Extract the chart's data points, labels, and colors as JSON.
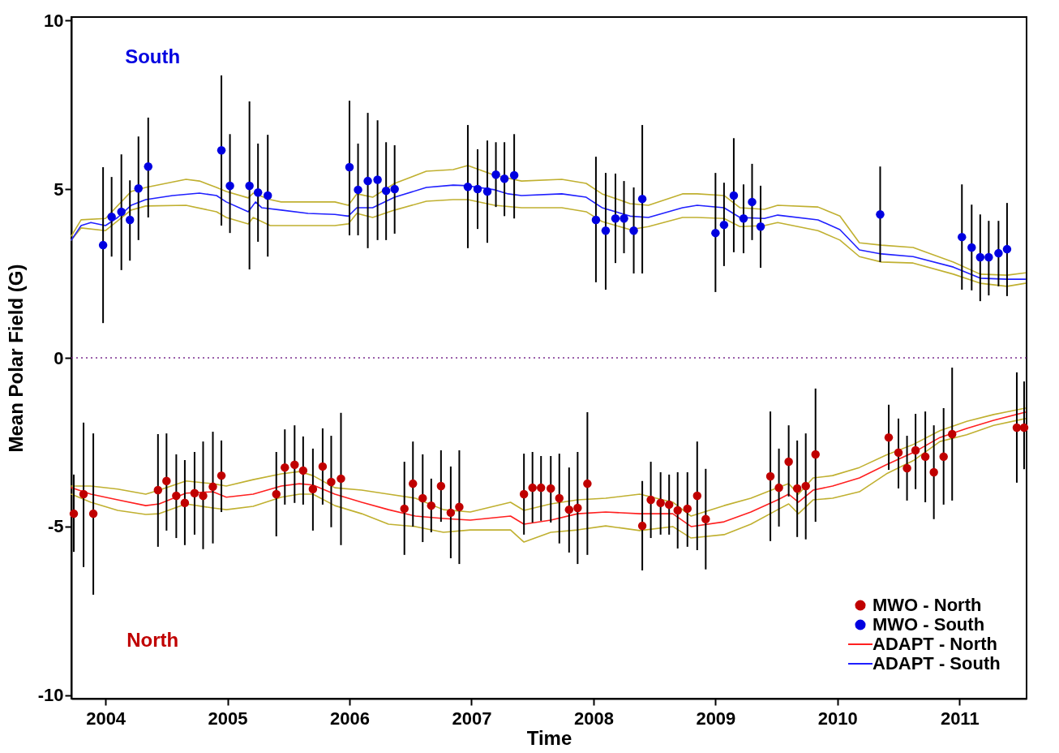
{
  "chart_data": {
    "type": "scatter",
    "xlabel": "Time",
    "ylabel": "Mean Polar Field (G)",
    "xlim": [
      2003.72,
      2011.55
    ],
    "xticks": [
      2004,
      2005,
      2006,
      2007,
      2008,
      2009,
      2010,
      2011
    ],
    "ylim": [
      -10.1,
      10.1
    ],
    "yticks": [
      -10,
      -5,
      0,
      5,
      10
    ],
    "legend": "bottom right",
    "marker": "circle",
    "line_style": "solid",
    "ref_lines": [
      {
        "axis": "y",
        "value": 0,
        "color": "#7b2d8e",
        "line_style": "dotted"
      }
    ],
    "annotations": [
      "South",
      "North"
    ],
    "series": [
      {
        "name": "MWO - North",
        "color": "#c00000",
        "x": [
          2003.74,
          2003.82,
          2003.9,
          2004.43,
          2004.5,
          2004.58,
          2004.65,
          2004.73,
          2004.8,
          2004.88,
          2004.95,
          2005.4,
          2005.47,
          2005.55,
          2005.62,
          2005.7,
          2005.78,
          2005.85,
          2005.93,
          2006.45,
          2006.52,
          2006.6,
          2006.67,
          2006.75,
          2006.83,
          2006.9,
          2007.43,
          2007.5,
          2007.57,
          2007.65,
          2007.72,
          2007.8,
          2007.87,
          2007.95,
          2008.4,
          2008.47,
          2008.55,
          2008.62,
          2008.69,
          2008.77,
          2008.85,
          2008.92,
          2009.45,
          2009.52,
          2009.6,
          2009.67,
          2009.74,
          2009.82,
          2010.42,
          2010.5,
          2010.57,
          2010.64,
          2010.72,
          2010.79,
          2010.87,
          2010.94,
          2011.47,
          2011.53
        ],
        "values": [
          -4.62,
          -4.04,
          -4.62,
          -3.92,
          -3.65,
          -4.09,
          -4.3,
          -4.01,
          -4.09,
          -3.82,
          -3.49,
          -4.04,
          -3.25,
          -3.17,
          -3.34,
          -3.89,
          -3.22,
          -3.68,
          -3.58,
          -4.47,
          -3.73,
          -4.16,
          -4.38,
          -3.8,
          -4.59,
          -4.42,
          -4.04,
          -3.85,
          -3.85,
          -3.87,
          -4.16,
          -4.5,
          -4.45,
          -3.73,
          -4.98,
          -4.21,
          -4.3,
          -4.35,
          -4.52,
          -4.47,
          -4.09,
          -4.78,
          -3.51,
          -3.85,
          -3.08,
          -3.87,
          -3.8,
          -2.86,
          -2.36,
          -2.81,
          -3.27,
          -2.74,
          -2.93,
          -3.39,
          -2.93,
          -2.26,
          -2.07,
          -2.07
        ],
        "errors": [
          [
            -5.75,
            -3.46
          ],
          [
            -6.2,
            -1.92
          ],
          [
            -7.02,
            -2.24
          ],
          [
            -5.6,
            -2.26
          ],
          [
            -5.12,
            -2.24
          ],
          [
            -5.34,
            -2.86
          ],
          [
            -5.55,
            -3.03
          ],
          [
            -5.24,
            -2.79
          ],
          [
            -5.67,
            -2.48
          ],
          [
            -5.5,
            -2.19
          ],
          [
            -4.57,
            -2.45
          ],
          [
            -5.29,
            -2.79
          ],
          [
            -4.35,
            -2.12
          ],
          [
            -4.3,
            -2.0
          ],
          [
            -4.35,
            -2.33
          ],
          [
            -5.12,
            -2.69
          ],
          [
            -4.35,
            -2.09
          ],
          [
            -5.02,
            -2.31
          ],
          [
            -5.55,
            -1.63
          ],
          [
            -5.84,
            -3.08
          ],
          [
            -5.0,
            -2.48
          ],
          [
            -5.46,
            -2.86
          ],
          [
            -5.17,
            -3.58
          ],
          [
            -4.86,
            -2.74
          ],
          [
            -5.94,
            -3.22
          ],
          [
            -6.11,
            -2.74
          ],
          [
            -5.24,
            -2.84
          ],
          [
            -4.88,
            -2.79
          ],
          [
            -4.83,
            -2.91
          ],
          [
            -4.88,
            -2.91
          ],
          [
            -5.5,
            -2.84
          ],
          [
            -5.77,
            -3.25
          ],
          [
            -6.11,
            -2.79
          ],
          [
            -5.84,
            -1.61
          ],
          [
            -6.3,
            -3.65
          ],
          [
            -5.34,
            -3.08
          ],
          [
            -5.24,
            -3.39
          ],
          [
            -5.24,
            -3.46
          ],
          [
            -5.65,
            -3.39
          ],
          [
            -5.6,
            -3.39
          ],
          [
            -5.7,
            -2.48
          ],
          [
            -6.27,
            -3.29
          ],
          [
            -5.43,
            -1.59
          ],
          [
            -5.0,
            -2.69
          ],
          [
            -4.11,
            -2.0
          ],
          [
            -5.31,
            -2.45
          ],
          [
            -5.38,
            -2.24
          ],
          [
            -4.86,
            -0.91
          ],
          [
            -3.32,
            -1.39
          ],
          [
            -3.87,
            -1.8
          ],
          [
            -4.23,
            -2.31
          ],
          [
            -3.89,
            -1.66
          ],
          [
            -4.28,
            -1.59
          ],
          [
            -4.78,
            -2.0
          ],
          [
            -4.35,
            -1.49
          ],
          [
            -4.23,
            -0.29
          ],
          [
            -3.7,
            -0.43
          ],
          [
            -3.3,
            -0.7
          ]
        ]
      },
      {
        "name": "MWO - South",
        "color": "#0000e0",
        "x": [
          2003.98,
          2004.05,
          2004.13,
          2004.2,
          2004.27,
          2004.35,
          2004.95,
          2005.02,
          2005.18,
          2005.25,
          2005.33,
          2006.0,
          2006.07,
          2006.15,
          2006.23,
          2006.3,
          2006.37,
          2006.97,
          2007.05,
          2007.13,
          2007.2,
          2007.27,
          2007.35,
          2008.02,
          2008.1,
          2008.18,
          2008.25,
          2008.33,
          2008.4,
          2009.0,
          2009.07,
          2009.15,
          2009.23,
          2009.3,
          2009.37,
          2010.35,
          2011.02,
          2011.1,
          2011.17,
          2011.24,
          2011.32,
          2011.39
        ],
        "values": [
          3.34,
          4.18,
          4.33,
          4.09,
          5.02,
          5.67,
          6.15,
          5.1,
          5.1,
          4.9,
          4.81,
          5.65,
          4.98,
          5.24,
          5.28,
          4.95,
          5.0,
          5.07,
          5.0,
          4.93,
          5.43,
          5.31,
          5.41,
          4.09,
          3.77,
          4.13,
          4.13,
          3.77,
          4.71,
          3.7,
          3.94,
          4.81,
          4.13,
          4.62,
          3.89,
          4.25,
          3.58,
          3.27,
          2.98,
          2.98,
          3.1,
          3.22
        ],
        "errors": [
          [
            1.03,
            5.65
          ],
          [
            3.0,
            5.36
          ],
          [
            2.6,
            6.03
          ],
          [
            2.88,
            5.26
          ],
          [
            3.49,
            6.56
          ],
          [
            4.16,
            7.12
          ],
          [
            3.92,
            8.37
          ],
          [
            3.7,
            6.63
          ],
          [
            2.62,
            7.6
          ],
          [
            3.44,
            6.35
          ],
          [
            3.0,
            6.61
          ],
          [
            3.63,
            7.62
          ],
          [
            3.63,
            6.35
          ],
          [
            3.25,
            7.26
          ],
          [
            3.49,
            7.04
          ],
          [
            3.49,
            6.39
          ],
          [
            3.68,
            6.3
          ],
          [
            3.25,
            6.9
          ],
          [
            3.82,
            6.18
          ],
          [
            3.41,
            6.44
          ],
          [
            4.47,
            6.39
          ],
          [
            4.2,
            6.39
          ],
          [
            4.13,
            6.63
          ],
          [
            2.24,
            5.96
          ],
          [
            2.02,
            5.48
          ],
          [
            2.81,
            5.46
          ],
          [
            3.1,
            5.24
          ],
          [
            2.5,
            5.05
          ],
          [
            2.5,
            6.9
          ],
          [
            1.95,
            5.48
          ],
          [
            2.72,
            5.19
          ],
          [
            3.13,
            6.51
          ],
          [
            3.1,
            5.14
          ],
          [
            3.49,
            5.75
          ],
          [
            2.67,
            5.1
          ],
          [
            2.84,
            5.67
          ],
          [
            2.02,
            5.14
          ],
          [
            2.0,
            4.54
          ],
          [
            1.68,
            4.25
          ],
          [
            1.85,
            4.06
          ],
          [
            2.12,
            4.06
          ],
          [
            1.83,
            4.59
          ]
        ]
      },
      {
        "name": "ADAPT - North",
        "type": "line",
        "marker": "none",
        "color": "#ff2020",
        "x": [
          2003.72,
          2003.88,
          2004.1,
          2004.33,
          2004.44,
          2004.66,
          2004.88,
          2004.99,
          2005.21,
          2005.44,
          2005.59,
          2005.7,
          2005.88,
          2006.1,
          2006.32,
          2006.54,
          2006.77,
          2006.99,
          2007.32,
          2007.43,
          2007.65,
          2007.87,
          2008.1,
          2008.38,
          2008.65,
          2008.8,
          2009.07,
          2009.29,
          2009.51,
          2009.6,
          2009.68,
          2009.8,
          2009.96,
          2010.18,
          2010.4,
          2010.62,
          2010.84,
          2011.06,
          2011.28,
          2011.54
        ],
        "values": [
          -3.85,
          -4.04,
          -4.21,
          -4.38,
          -4.33,
          -4.01,
          -3.97,
          -4.13,
          -4.04,
          -3.8,
          -3.73,
          -3.77,
          -4.04,
          -4.28,
          -4.5,
          -4.69,
          -4.76,
          -4.81,
          -4.69,
          -4.93,
          -4.81,
          -4.62,
          -4.57,
          -4.62,
          -4.62,
          -5.0,
          -4.86,
          -4.57,
          -4.21,
          -4.04,
          -4.28,
          -3.92,
          -3.8,
          -3.56,
          -3.17,
          -2.81,
          -2.36,
          -2.09,
          -1.85,
          -1.61
        ]
      },
      {
        "name": "ADAPT - South",
        "type": "line",
        "marker": "none",
        "color": "#2020ff",
        "x": [
          2003.72,
          2003.8,
          2003.88,
          2004.0,
          2004.1,
          2004.21,
          2004.33,
          2004.55,
          2004.77,
          2004.91,
          2004.99,
          2005.17,
          2005.23,
          2005.28,
          2005.44,
          2005.66,
          2005.88,
          2005.99,
          2006.06,
          2006.19,
          2006.37,
          2006.63,
          2006.85,
          2006.97,
          2007.19,
          2007.3,
          2007.41,
          2007.74,
          2007.94,
          2008.07,
          2008.3,
          2008.45,
          2008.73,
          2008.85,
          2009.07,
          2009.2,
          2009.4,
          2009.51,
          2009.84,
          2010.02,
          2010.18,
          2010.36,
          2010.62,
          2010.95,
          2011.17,
          2011.39,
          2011.54
        ],
        "values": [
          3.49,
          3.92,
          4.01,
          3.92,
          4.16,
          4.52,
          4.69,
          4.81,
          4.88,
          4.81,
          4.62,
          4.33,
          4.62,
          4.45,
          4.38,
          4.28,
          4.25,
          4.2,
          4.45,
          4.45,
          4.76,
          5.05,
          5.12,
          5.1,
          4.98,
          4.86,
          4.81,
          4.86,
          4.76,
          4.45,
          4.2,
          4.16,
          4.45,
          4.52,
          4.45,
          4.16,
          4.13,
          4.23,
          4.09,
          3.8,
          3.2,
          3.08,
          3.0,
          2.69,
          2.36,
          2.33,
          2.33
        ]
      },
      {
        "type": "line",
        "marker": "none",
        "color": "#c0b030",
        "x": [
          2003.72,
          2003.8,
          2004.0,
          2004.21,
          2004.33,
          2004.66,
          2004.77,
          2004.91,
          2004.99,
          2005.17,
          2005.21,
          2005.35,
          2005.44,
          2005.88,
          2005.99,
          2006.06,
          2006.19,
          2006.37,
          2006.63,
          2006.85,
          2006.97,
          2007.19,
          2007.41,
          2007.74,
          2007.94,
          2008.07,
          2008.3,
          2008.45,
          2008.73,
          2008.85,
          2009.07,
          2009.2,
          2009.4,
          2009.51,
          2009.84,
          2010.02,
          2010.18,
          2010.36,
          2010.62,
          2010.95,
          2011.17,
          2011.39,
          2011.54
        ],
        "values": [
          3.61,
          4.09,
          4.13,
          4.93,
          5.05,
          5.29,
          5.24,
          5.05,
          4.93,
          4.74,
          4.88,
          4.69,
          4.62,
          4.62,
          4.52,
          4.86,
          4.76,
          5.17,
          5.53,
          5.58,
          5.7,
          5.41,
          5.24,
          5.29,
          5.17,
          4.86,
          4.57,
          4.52,
          4.86,
          4.86,
          4.81,
          4.45,
          4.4,
          4.52,
          4.47,
          4.2,
          3.41,
          3.34,
          3.27,
          2.84,
          2.48,
          2.45,
          2.52
        ]
      },
      {
        "type": "line",
        "marker": "none",
        "color": "#c0b030",
        "x": [
          2003.72,
          2003.8,
          2004.0,
          2004.21,
          2004.33,
          2004.66,
          2004.91,
          2004.99,
          2005.17,
          2005.21,
          2005.35,
          2005.88,
          2005.99,
          2006.06,
          2006.19,
          2006.37,
          2006.63,
          2006.85,
          2006.97,
          2007.19,
          2007.41,
          2007.74,
          2007.94,
          2008.07,
          2008.3,
          2008.45,
          2008.73,
          2008.85,
          2009.07,
          2009.2,
          2009.4,
          2009.51,
          2009.84,
          2010.02,
          2010.18,
          2010.36,
          2010.62,
          2010.95,
          2011.17,
          2011.39,
          2011.54
        ],
        "values": [
          3.49,
          3.85,
          3.77,
          4.38,
          4.5,
          4.52,
          4.33,
          4.16,
          3.97,
          4.16,
          3.92,
          3.92,
          3.97,
          4.28,
          4.16,
          4.38,
          4.64,
          4.69,
          4.69,
          4.52,
          4.45,
          4.45,
          4.33,
          4.04,
          3.8,
          3.89,
          4.16,
          4.16,
          4.13,
          3.89,
          3.92,
          4.01,
          3.77,
          3.49,
          3.0,
          2.84,
          2.81,
          2.48,
          2.21,
          2.12,
          2.21
        ]
      },
      {
        "type": "line",
        "marker": "none",
        "color": "#c0b030",
        "x": [
          2003.72,
          2003.88,
          2004.1,
          2004.33,
          2004.44,
          2004.66,
          2004.88,
          2004.99,
          2005.21,
          2005.44,
          2005.59,
          2005.7,
          2005.88,
          2006.1,
          2006.32,
          2006.54,
          2006.77,
          2006.99,
          2007.32,
          2007.43,
          2007.65,
          2007.87,
          2008.1,
          2008.38,
          2008.65,
          2008.8,
          2009.07,
          2009.29,
          2009.51,
          2009.6,
          2009.68,
          2009.8,
          2009.96,
          2010.18,
          2010.4,
          2010.62,
          2010.84,
          2011.06,
          2011.28,
          2011.54
        ],
        "values": [
          -3.8,
          -3.8,
          -3.89,
          -4.04,
          -3.92,
          -3.65,
          -3.73,
          -3.8,
          -3.61,
          -3.44,
          -3.37,
          -3.49,
          -3.85,
          -3.92,
          -4.04,
          -4.16,
          -4.5,
          -4.57,
          -4.28,
          -4.52,
          -4.33,
          -4.21,
          -4.16,
          -4.04,
          -4.28,
          -4.69,
          -4.38,
          -4.16,
          -3.85,
          -3.73,
          -4.04,
          -3.56,
          -3.49,
          -3.25,
          -2.88,
          -2.57,
          -2.16,
          -1.88,
          -1.68,
          -1.49
        ]
      },
      {
        "type": "line",
        "marker": "none",
        "color": "#c0b030",
        "x": [
          2003.72,
          2003.88,
          2004.1,
          2004.33,
          2004.44,
          2004.66,
          2004.88,
          2004.99,
          2005.21,
          2005.44,
          2005.59,
          2005.7,
          2005.88,
          2006.1,
          2006.32,
          2006.54,
          2006.77,
          2006.99,
          2007.32,
          2007.43,
          2007.65,
          2007.87,
          2008.1,
          2008.38,
          2008.65,
          2008.8,
          2009.07,
          2009.29,
          2009.51,
          2009.6,
          2009.68,
          2009.8,
          2009.96,
          2010.18,
          2010.4,
          2010.62,
          2010.84,
          2011.06,
          2011.28,
          2011.54
        ],
        "values": [
          -4.04,
          -4.28,
          -4.52,
          -4.64,
          -4.62,
          -4.33,
          -4.45,
          -4.5,
          -4.4,
          -4.13,
          -4.04,
          -4.04,
          -4.38,
          -4.62,
          -4.93,
          -5.0,
          -5.17,
          -5.1,
          -5.1,
          -5.46,
          -5.17,
          -5.1,
          -4.98,
          -5.12,
          -5.0,
          -5.34,
          -5.24,
          -4.93,
          -4.5,
          -4.33,
          -4.62,
          -4.21,
          -4.16,
          -3.97,
          -3.44,
          -3.05,
          -2.48,
          -2.28,
          -2.0,
          -1.8
        ]
      }
    ]
  }
}
